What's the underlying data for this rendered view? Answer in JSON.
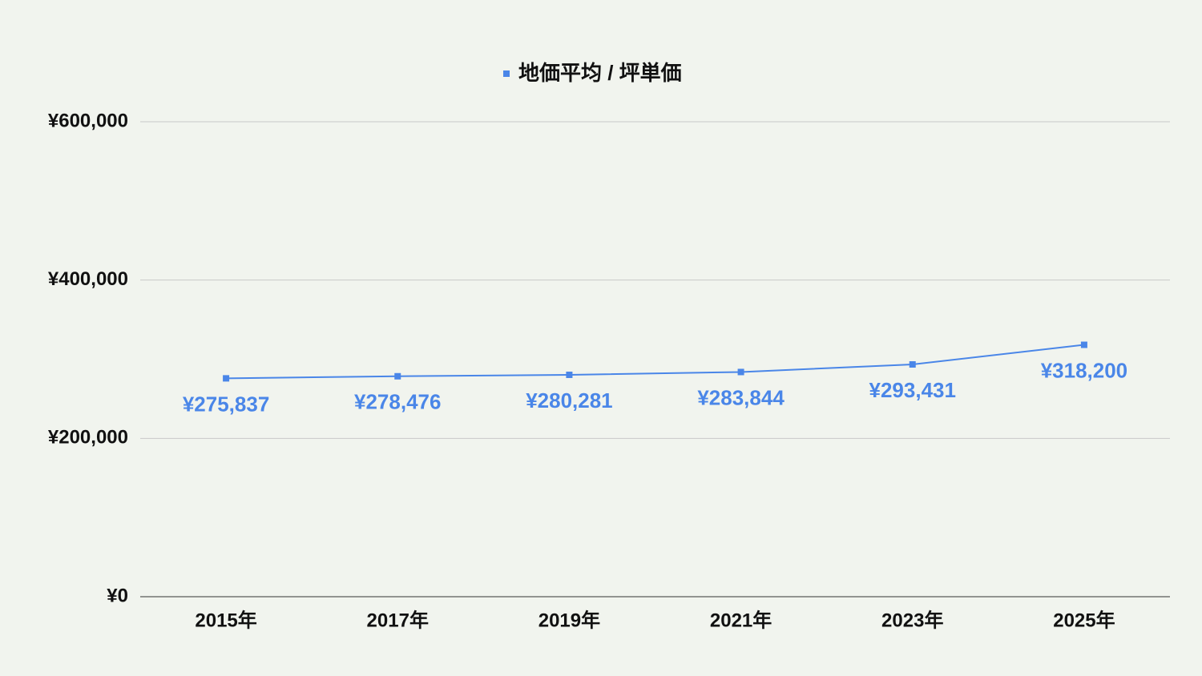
{
  "chart_data": {
    "type": "line",
    "categories": [
      "2015年",
      "2017年",
      "2019年",
      "2021年",
      "2023年",
      "2025年"
    ],
    "series": [
      {
        "name": "地価平均 / 坪単価",
        "color": "#4a86e8",
        "values": [
          275837,
          278476,
          280281,
          283844,
          293431,
          318200
        ],
        "value_labels": [
          "¥275,837",
          "¥278,476",
          "¥280,281",
          "¥283,844",
          "¥293,431",
          "¥318,200"
        ]
      }
    ],
    "ylim": [
      0,
      600000
    ],
    "yticks": [
      {
        "value": 0,
        "label": "¥0"
      },
      {
        "value": 200000,
        "label": "¥200,000"
      },
      {
        "value": 400000,
        "label": "¥400,000"
      },
      {
        "value": 600000,
        "label": "¥600,000"
      }
    ],
    "grid": true,
    "legend": "top"
  }
}
